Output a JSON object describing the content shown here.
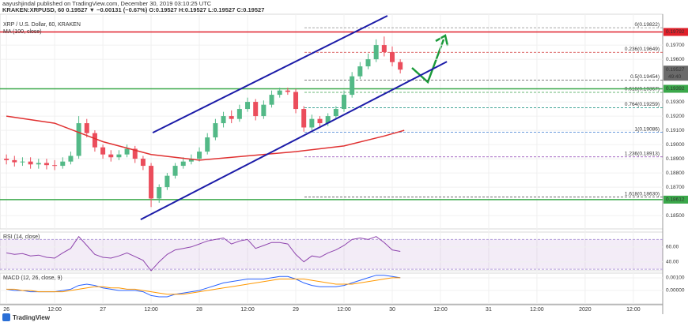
{
  "header": {
    "author_line": "aayushjindal published on TradingView.com, December 30, 2019 03:10:25 UTC",
    "symbol_line": "KRAKEN:XRPUSD, 60  0.19527 ▼ −0.00131 (−0.67%) O:0.19527 H:0.19527 L:0.19527 C:0.19527"
  },
  "footer": {
    "brand": "TradingView"
  },
  "chart_data": [
    {
      "type": "candlestick",
      "title": "XRP / U.S. Dollar, 60, KRAKEN",
      "up_color": "#53b987",
      "down_color": "#eb4d5c",
      "xlim": [
        -1.6,
        163.3
      ],
      "ylim": [
        0.18406,
        0.19917
      ],
      "xticks": [
        {
          "value": 0,
          "label": "26"
        },
        {
          "value": 12,
          "label": "12:00"
        },
        {
          "value": 24,
          "label": "27"
        },
        {
          "value": 36,
          "label": "12:00"
        },
        {
          "value": 48,
          "label": "28"
        },
        {
          "value": 60,
          "label": "12:00"
        },
        {
          "value": 72,
          "label": "29"
        },
        {
          "value": 84,
          "label": "12:00"
        },
        {
          "value": 96,
          "label": "30"
        },
        {
          "value": 108,
          "label": "12:00"
        },
        {
          "value": 120,
          "label": "31"
        },
        {
          "value": 132,
          "label": "12:00"
        },
        {
          "value": 144,
          "label": "2020"
        },
        {
          "value": 156,
          "label": "12:00"
        }
      ],
      "yticks": [
        {
          "value": 0.197,
          "label": "0.19700"
        },
        {
          "value": 0.196,
          "label": "0.19600"
        },
        {
          "value": 0.193,
          "label": "0.19300"
        },
        {
          "value": 0.192,
          "label": "0.19200"
        },
        {
          "value": 0.191,
          "label": "0.19100"
        },
        {
          "value": 0.19,
          "label": "0.19000"
        },
        {
          "value": 0.189,
          "label": "0.18900"
        },
        {
          "value": 0.188,
          "label": "0.18800"
        },
        {
          "value": 0.187,
          "label": "0.18700"
        },
        {
          "value": 0.185,
          "label": "0.18500"
        }
      ],
      "x": [
        0,
        2,
        4,
        6,
        8,
        10,
        12,
        14,
        16,
        18,
        20,
        22,
        24,
        26,
        28,
        30,
        32,
        34,
        36,
        38,
        40,
        42,
        44,
        46,
        48,
        50,
        52,
        54,
        56,
        58,
        60,
        62,
        64,
        66,
        68,
        70,
        72,
        74,
        76,
        78,
        80,
        82,
        84,
        86,
        88,
        90,
        92,
        94,
        96,
        98
      ],
      "open": [
        0.189,
        0.1889,
        0.18875,
        0.1888,
        0.1886,
        0.1887,
        0.18855,
        0.1885,
        0.1888,
        0.1892,
        0.1915,
        0.1908,
        0.1898,
        0.1893,
        0.1891,
        0.1893,
        0.1897,
        0.189,
        0.1885,
        0.1862,
        0.187,
        0.1878,
        0.1885,
        0.1888,
        0.189,
        0.1895,
        0.1905,
        0.1915,
        0.192,
        0.1918,
        0.1925,
        0.193,
        0.192,
        0.1928,
        0.1935,
        0.1938,
        0.1937,
        0.1925,
        0.1912,
        0.1918,
        0.1915,
        0.192,
        0.1925,
        0.1935,
        0.1948,
        0.1955,
        0.196,
        0.197,
        0.1965,
        0.1958
      ],
      "high": [
        0.1893,
        0.1892,
        0.1891,
        0.1891,
        0.189,
        0.189,
        0.1889,
        0.1891,
        0.1895,
        0.192,
        0.1918,
        0.191,
        0.19,
        0.1896,
        0.1896,
        0.19,
        0.1899,
        0.1892,
        0.1887,
        0.1872,
        0.188,
        0.1887,
        0.1891,
        0.1893,
        0.1898,
        0.1908,
        0.1918,
        0.1923,
        0.1924,
        0.1928,
        0.1933,
        0.1932,
        0.1931,
        0.1938,
        0.194,
        0.194,
        0.1939,
        0.1927,
        0.1921,
        0.192,
        0.1922,
        0.1927,
        0.1938,
        0.1951,
        0.1958,
        0.1964,
        0.1974,
        0.1976,
        0.1969,
        0.196
      ],
      "low": [
        0.1886,
        0.18845,
        0.1885,
        0.1883,
        0.1883,
        0.18825,
        0.1882,
        0.1883,
        0.1886,
        0.189,
        0.1905,
        0.1895,
        0.189,
        0.1888,
        0.1889,
        0.1891,
        0.1887,
        0.1882,
        0.1856,
        0.1859,
        0.1868,
        0.1876,
        0.1883,
        0.1886,
        0.1888,
        0.1893,
        0.1903,
        0.1912,
        0.1915,
        0.1916,
        0.1923,
        0.1917,
        0.1918,
        0.1926,
        0.1933,
        0.1935,
        0.1922,
        0.1909,
        0.191,
        0.1912,
        0.1913,
        0.1918,
        0.1923,
        0.1933,
        0.1946,
        0.1953,
        0.1958,
        0.1962,
        0.1955,
        0.195
      ],
      "close": [
        0.1889,
        0.18875,
        0.1888,
        0.1886,
        0.1887,
        0.18855,
        0.1885,
        0.1888,
        0.1892,
        0.1915,
        0.1908,
        0.1898,
        0.1893,
        0.1891,
        0.1893,
        0.1897,
        0.189,
        0.1885,
        0.1862,
        0.187,
        0.1878,
        0.1885,
        0.1888,
        0.189,
        0.1895,
        0.1905,
        0.1915,
        0.192,
        0.1918,
        0.1925,
        0.193,
        0.192,
        0.1928,
        0.1935,
        0.1938,
        0.1937,
        0.1925,
        0.1912,
        0.1918,
        0.1915,
        0.192,
        0.1925,
        0.1935,
        0.1948,
        0.1955,
        0.196,
        0.197,
        0.1965,
        0.1958,
        0.19527
      ],
      "ma": {
        "name": "MA (100, close)",
        "color": "#e03131",
        "x": [
          0,
          12,
          24,
          36,
          48,
          60,
          72,
          84,
          94,
          99
        ],
        "values": [
          0.192,
          0.1915,
          0.1902,
          0.1893,
          0.1889,
          0.1892,
          0.1895,
          0.1899,
          0.1906,
          0.191
        ]
      },
      "channel": {
        "color": "#1c1ca8",
        "lines": [
          {
            "x": [
              36.4,
              94.8
            ],
            "y": [
              0.19083,
              0.19906
            ]
          },
          {
            "x": [
              33.4,
              109.6
            ],
            "y": [
              0.18472,
              0.19583
            ]
          }
        ]
      },
      "fib": [
        {
          "label": "0(0.19822)",
          "value": 0.19822,
          "color": "#8a8a8a"
        },
        {
          "label": "0.236(0.19649)",
          "value": 0.19649,
          "color": "#d23a3a"
        },
        {
          "label": "0.5(0.19454)",
          "value": 0.19454,
          "color": "#555555"
        },
        {
          "label": "0.618(0.19367)",
          "value": 0.19367,
          "color": "#3aa04a"
        },
        {
          "label": "0.764(0.19259)",
          "value": 0.19259,
          "color": "#2a9a8a"
        },
        {
          "label": "1(0.19086)",
          "value": 0.19086,
          "color": "#3a7ad0"
        },
        {
          "label": "1.236(0.18913)",
          "value": 0.18913,
          "color": "#8a3ab0"
        },
        {
          "label": "1.618(0.18630)",
          "value": 0.1863,
          "color": "#555555"
        }
      ],
      "levels": [
        {
          "label": "0.19792",
          "value": 0.19792,
          "color": "#e0202a"
        },
        {
          "label": "0.19392",
          "value": 0.19392,
          "color": "#3aa84a"
        },
        {
          "label": "0.18612",
          "value": 0.18612,
          "color": "#3aa84a"
        }
      ],
      "last_price": {
        "label": "0.19527",
        "value": 0.19527,
        "countdown": "49:40",
        "color": "#6a6a6a"
      }
    },
    {
      "type": "line",
      "title": "RSI (14, close)",
      "color": "#8e44ad",
      "band": [
        30,
        70
      ],
      "ylim": [
        28,
        80
      ],
      "yticks": [
        {
          "value": 60,
          "label": "60.00"
        },
        {
          "value": 40,
          "label": "40.00"
        }
      ],
      "x": [
        0,
        2,
        4,
        6,
        8,
        10,
        12,
        14,
        16,
        18,
        20,
        22,
        24,
        26,
        28,
        30,
        32,
        34,
        36,
        38,
        40,
        42,
        44,
        46,
        48,
        50,
        52,
        54,
        56,
        58,
        60,
        62,
        64,
        66,
        68,
        70,
        72,
        74,
        76,
        78,
        80,
        82,
        84,
        86,
        88,
        90,
        92,
        94,
        96,
        98
      ],
      "values": [
        52,
        50,
        51,
        48,
        49,
        46,
        45,
        52,
        58,
        74,
        62,
        50,
        46,
        45,
        48,
        52,
        47,
        42,
        28,
        40,
        50,
        56,
        58,
        60,
        64,
        68,
        70,
        72,
        64,
        68,
        70,
        58,
        62,
        66,
        66,
        64,
        50,
        40,
        48,
        46,
        52,
        56,
        62,
        70,
        72,
        70,
        74,
        66,
        56,
        54
      ]
    },
    {
      "type": "macd",
      "title": "MACD (12, 26, close, 9)",
      "ylim": [
        -0.00106,
        0.00137
      ],
      "yticks": [
        {
          "value": 0.001,
          "label": "0.00100"
        },
        {
          "value": 0,
          "label": "0.00000"
        }
      ],
      "x": [
        0,
        2,
        4,
        6,
        8,
        10,
        12,
        14,
        16,
        18,
        20,
        22,
        24,
        26,
        28,
        30,
        32,
        34,
        36,
        38,
        40,
        42,
        44,
        46,
        48,
        50,
        52,
        54,
        56,
        58,
        60,
        62,
        64,
        66,
        68,
        70,
        72,
        74,
        76,
        78,
        80,
        82,
        84,
        86,
        88,
        90,
        92,
        94,
        96,
        98
      ],
      "series": [
        {
          "color": "#2962ff",
          "values": [
            0.0001,
            0,
            0,
            -0.0001,
            -0.0001,
            -0.0001,
            -0.0001,
            0,
            0.0001,
            0.0004,
            0.0005,
            0.0004,
            0.0002,
            0.0001,
            0,
            0,
            0,
            -0.0001,
            -0.0004,
            -0.0005,
            -0.0005,
            -0.0003,
            -0.0002,
            -0.0001,
            0,
            0.0002,
            0.0004,
            0.0006,
            0.0007,
            0.0008,
            0.0009,
            0.0009,
            0.0009,
            0.001,
            0.0011,
            0.0011,
            0.0009,
            0.0006,
            0.0004,
            0.0003,
            0.0003,
            0.0003,
            0.0004,
            0.0006,
            0.0008,
            0.001,
            0.0012,
            0.0012,
            0.0011,
            0.001
          ]
        },
        {
          "color": "#ff9800",
          "values": [
            0.0001,
            0.0001,
            0,
            0,
            -0.0001,
            -0.0001,
            -0.0001,
            -0.0001,
            0,
            0.0001,
            0.0002,
            0.0003,
            0.0003,
            0.0002,
            0.0002,
            0.0001,
            0.0001,
            0,
            -0.0001,
            -0.0002,
            -0.0003,
            -0.0003,
            -0.0003,
            -0.0002,
            -0.0001,
            0,
            0.0001,
            0.0002,
            0.0003,
            0.0004,
            0.0005,
            0.0006,
            0.0007,
            0.0008,
            0.0009,
            0.0009,
            0.0009,
            0.0009,
            0.0008,
            0.0007,
            0.0006,
            0.0005,
            0.0005,
            0.0005,
            0.0006,
            0.0007,
            0.0008,
            0.0009,
            0.001,
            0.001
          ]
        }
      ]
    }
  ]
}
